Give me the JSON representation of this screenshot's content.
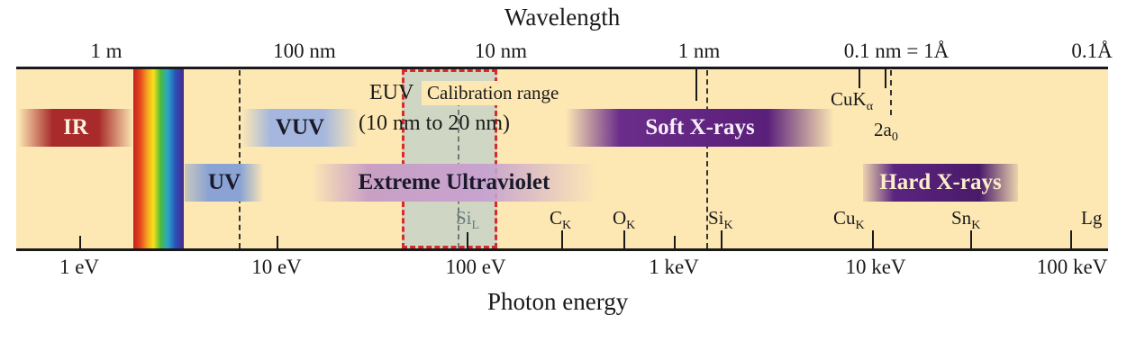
{
  "top_axis": {
    "title": "Wavelength",
    "labels": [
      "1 m",
      "100 nm",
      "10 nm",
      "1 nm",
      "0.1 nm = 1Å",
      "0.1Å"
    ]
  },
  "bottom_axis": {
    "title": "Photon energy",
    "labels": [
      "1 eV",
      "10 eV",
      "100 eV",
      "1 keV",
      "10 keV",
      "100 keV"
    ]
  },
  "bands": {
    "ir": "IR",
    "uv": "UV",
    "vuv": "VUV",
    "euv_band": "Extreme Ultraviolet",
    "soft_xray": "Soft X-rays",
    "hard_xray": "Hard X-rays"
  },
  "euv_note": {
    "line1": "EUV",
    "line2": "(10 nm to 20 nm)"
  },
  "calibration": {
    "label": "Calibration range"
  },
  "edges": {
    "si_l": {
      "main": "Si",
      "sub": "L"
    },
    "c_k": {
      "main": "C",
      "sub": "K"
    },
    "o_k": {
      "main": "O",
      "sub": "K"
    },
    "si_k": {
      "main": "Si",
      "sub": "K"
    },
    "cu_k": {
      "main": "Cu",
      "sub": "K"
    },
    "sn_k": {
      "main": "Sn",
      "sub": "K"
    },
    "lg": {
      "main": "Lg",
      "sub": ""
    }
  },
  "top_marks": {
    "cuka": {
      "main": "CuK",
      "sub": "α"
    },
    "two_a0": {
      "main": "2a",
      "sub": "0"
    }
  },
  "colors": {
    "background_strip": "#fde8b4",
    "calibration_border": "#d9292b",
    "ir": "#a82a2a",
    "uv": "#7c97cc",
    "soft_xray": "#5a1f7a",
    "hard_xray": "#4a1a6a"
  }
}
